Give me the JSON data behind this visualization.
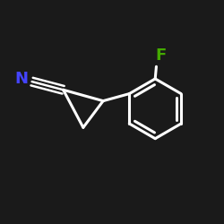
{
  "background_color": "#1a1a1a",
  "bond_color": "#ffffff",
  "N_label_color": "#4444ff",
  "F_label_color": "#44aa00",
  "bond_width": 2.2,
  "figsize": [
    2.5,
    2.5
  ],
  "dpi": 100,
  "N_label": "N",
  "F_label": "F",
  "label_fontsize": 13,
  "label_fontweight": "bold",
  "xlim": [
    0,
    1
  ],
  "ylim": [
    0.1,
    0.9
  ]
}
